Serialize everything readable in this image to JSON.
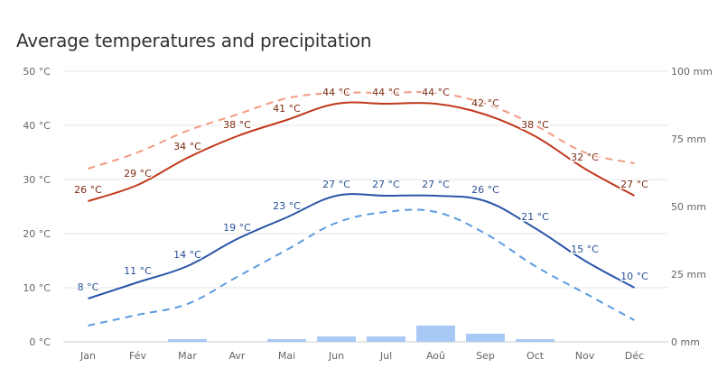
{
  "title": "Average temperatures and precipitation",
  "chart_data": {
    "type": "line",
    "title": "Average temperatures and precipitation",
    "categories": [
      "Jan",
      "Fév",
      "Mar",
      "Avr",
      "Mai",
      "Jun",
      "Jul",
      "Aoû",
      "Sep",
      "Oct",
      "Nov",
      "Déc"
    ],
    "y_left": {
      "ylim": [
        0,
        50
      ],
      "ticks": [
        "0 °C",
        "10 °C",
        "20 °C",
        "30 °C",
        "40 °C",
        "50 °C"
      ],
      "tick_values": [
        0,
        10,
        20,
        30,
        40,
        50
      ]
    },
    "y_right": {
      "ylim": [
        0,
        100
      ],
      "ticks": [
        "0 mm",
        "25 mm",
        "50 mm",
        "75 mm",
        "100 mm"
      ],
      "tick_values": [
        0,
        25,
        50,
        75,
        100
      ]
    },
    "grid": true,
    "series": [
      {
        "kind": "line",
        "style": "solid",
        "color": "#c0391b",
        "label_color": "#7a2a10",
        "axis": "left",
        "values": [
          26,
          29,
          34,
          38,
          41,
          44,
          44,
          44,
          42,
          38,
          32,
          27
        ],
        "labels": [
          "26 °C",
          "29 °C",
          "34 °C",
          "38 °C",
          "41 °C",
          "44 °C",
          "44 °C",
          "44 °C",
          "42 °C",
          "38 °C",
          "32 °C",
          "27 °C"
        ]
      },
      {
        "kind": "line",
        "style": "dashed",
        "color": "#f09a80",
        "axis": "left",
        "values": [
          32,
          35,
          39,
          42,
          45,
          46,
          46,
          46,
          44,
          40,
          35,
          33
        ]
      },
      {
        "kind": "line",
        "style": "solid",
        "color": "#2a55a8",
        "label_color": "#2a4f95",
        "axis": "left",
        "values": [
          8,
          11,
          14,
          19,
          23,
          27,
          27,
          27,
          26,
          21,
          15,
          10
        ],
        "labels": [
          "8 °C",
          "11 °C",
          "14 °C",
          "19 °C",
          "23 °C",
          "27 °C",
          "27 °C",
          "27 °C",
          "26 °C",
          "21 °C",
          "15 °C",
          "10 °C"
        ]
      },
      {
        "kind": "line",
        "style": "dashed",
        "color": "#5b9be0",
        "axis": "left",
        "values": [
          3,
          5,
          7,
          12,
          17,
          22,
          24,
          24,
          20,
          14,
          9,
          4
        ]
      },
      {
        "kind": "bar",
        "color": "#a8c8f5",
        "axis": "right",
        "values": [
          0,
          0,
          1,
          0,
          1,
          2,
          2,
          6,
          3,
          1,
          0,
          0
        ]
      }
    ]
  }
}
